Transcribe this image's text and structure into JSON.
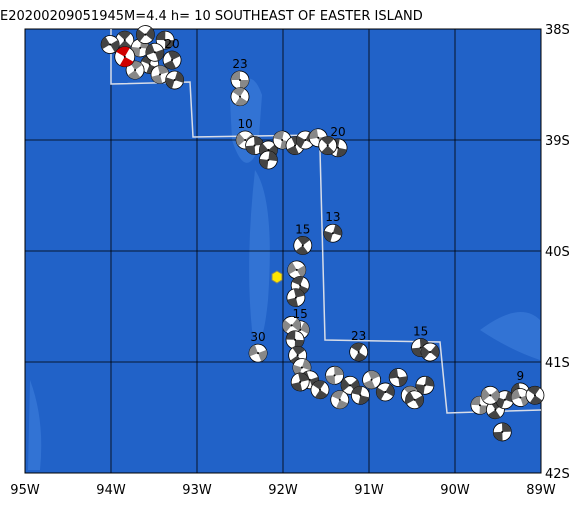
{
  "title": "E20200209051945M=4.4 h= 10 SOUTHEAST OF EASTER ISLAND",
  "map": {
    "xlim": [
      -95,
      -89
    ],
    "ylim": [
      -38,
      -42
    ],
    "xticks": [
      {
        "value": -95,
        "label": "95W"
      },
      {
        "value": -94,
        "label": "94W"
      },
      {
        "value": -93,
        "label": "93W"
      },
      {
        "value": -92,
        "label": "92W"
      },
      {
        "value": -91,
        "label": "91W"
      },
      {
        "value": -90,
        "label": "90W"
      },
      {
        "value": -89,
        "label": "89W"
      }
    ],
    "yticks": [
      {
        "value": -38,
        "label": "38S"
      },
      {
        "value": -39,
        "label": "39S"
      },
      {
        "value": -40,
        "label": "40S"
      },
      {
        "value": -41,
        "label": "41S"
      },
      {
        "value": -42,
        "label": "42S"
      }
    ],
    "mainshock": {
      "lon": -93.84,
      "lat": -38.25
    },
    "events": [
      {
        "lon": -92.5,
        "lat": -38.46,
        "depth": 23
      },
      {
        "lon": -91.77,
        "lat": -39.95,
        "depth": 15
      },
      {
        "lon": -91.42,
        "lat": -39.84,
        "depth": 13
      },
      {
        "lon": -92.29,
        "lat": -40.92,
        "depth": 30
      },
      {
        "lon": -91.12,
        "lat": -40.91,
        "depth": 23
      },
      {
        "lon": -90.4,
        "lat": -40.87,
        "depth": 15
      },
      {
        "lon": -92.44,
        "lat": -39.0,
        "depth": 10
      },
      {
        "lon": -91.36,
        "lat": -39.07,
        "depth": 20
      },
      {
        "lon": -93.29,
        "lat": -38.28,
        "depth": 20
      },
      {
        "lon": -91.8,
        "lat": -40.71,
        "depth": 15
      },
      {
        "lon": -89.24,
        "lat": -41.27,
        "depth": 9
      },
      {
        "lon": -93.84,
        "lat": -38.1
      },
      {
        "lon": -93.66,
        "lat": -38.17
      },
      {
        "lon": -94.01,
        "lat": -38.14
      },
      {
        "lon": -93.55,
        "lat": -38.32
      },
      {
        "lon": -93.43,
        "lat": -38.41
      },
      {
        "lon": -93.6,
        "lat": -38.05
      },
      {
        "lon": -93.37,
        "lat": -38.1
      },
      {
        "lon": -93.72,
        "lat": -38.37
      },
      {
        "lon": -93.26,
        "lat": -38.46
      },
      {
        "lon": -93.49,
        "lat": -38.21
      },
      {
        "lon": -92.5,
        "lat": -38.61
      },
      {
        "lon": -92.33,
        "lat": -39.05
      },
      {
        "lon": -92.17,
        "lat": -39.09
      },
      {
        "lon": -92.01,
        "lat": -39.0
      },
      {
        "lon": -91.86,
        "lat": -39.05
      },
      {
        "lon": -91.74,
        "lat": -39.0
      },
      {
        "lon": -91.59,
        "lat": -38.98
      },
      {
        "lon": -91.48,
        "lat": -39.05
      },
      {
        "lon": -92.17,
        "lat": -39.18
      },
      {
        "lon": -91.84,
        "lat": -40.17
      },
      {
        "lon": -91.8,
        "lat": -40.31
      },
      {
        "lon": -91.85,
        "lat": -40.42
      },
      {
        "lon": -91.9,
        "lat": -40.67
      },
      {
        "lon": -91.86,
        "lat": -40.8
      },
      {
        "lon": -91.83,
        "lat": -40.94
      },
      {
        "lon": -91.78,
        "lat": -41.05
      },
      {
        "lon": -91.69,
        "lat": -41.16
      },
      {
        "lon": -91.57,
        "lat": -41.25
      },
      {
        "lon": -91.4,
        "lat": -41.12
      },
      {
        "lon": -91.22,
        "lat": -41.21
      },
      {
        "lon": -91.1,
        "lat": -41.3
      },
      {
        "lon": -90.97,
        "lat": -41.16
      },
      {
        "lon": -90.81,
        "lat": -41.27
      },
      {
        "lon": -90.66,
        "lat": -41.14
      },
      {
        "lon": -90.52,
        "lat": -41.3
      },
      {
        "lon": -90.35,
        "lat": -41.21
      },
      {
        "lon": -90.47,
        "lat": -41.34
      },
      {
        "lon": -91.34,
        "lat": -41.34
      },
      {
        "lon": -91.8,
        "lat": -41.18
      },
      {
        "lon": -90.29,
        "lat": -40.91
      },
      {
        "lon": -89.71,
        "lat": -41.39
      },
      {
        "lon": -89.53,
        "lat": -41.43
      },
      {
        "lon": -89.42,
        "lat": -41.34
      },
      {
        "lon": -89.24,
        "lat": -41.32
      },
      {
        "lon": -89.07,
        "lat": -41.3
      },
      {
        "lon": -89.45,
        "lat": -41.63
      },
      {
        "lon": -89.59,
        "lat": -41.3
      }
    ]
  }
}
